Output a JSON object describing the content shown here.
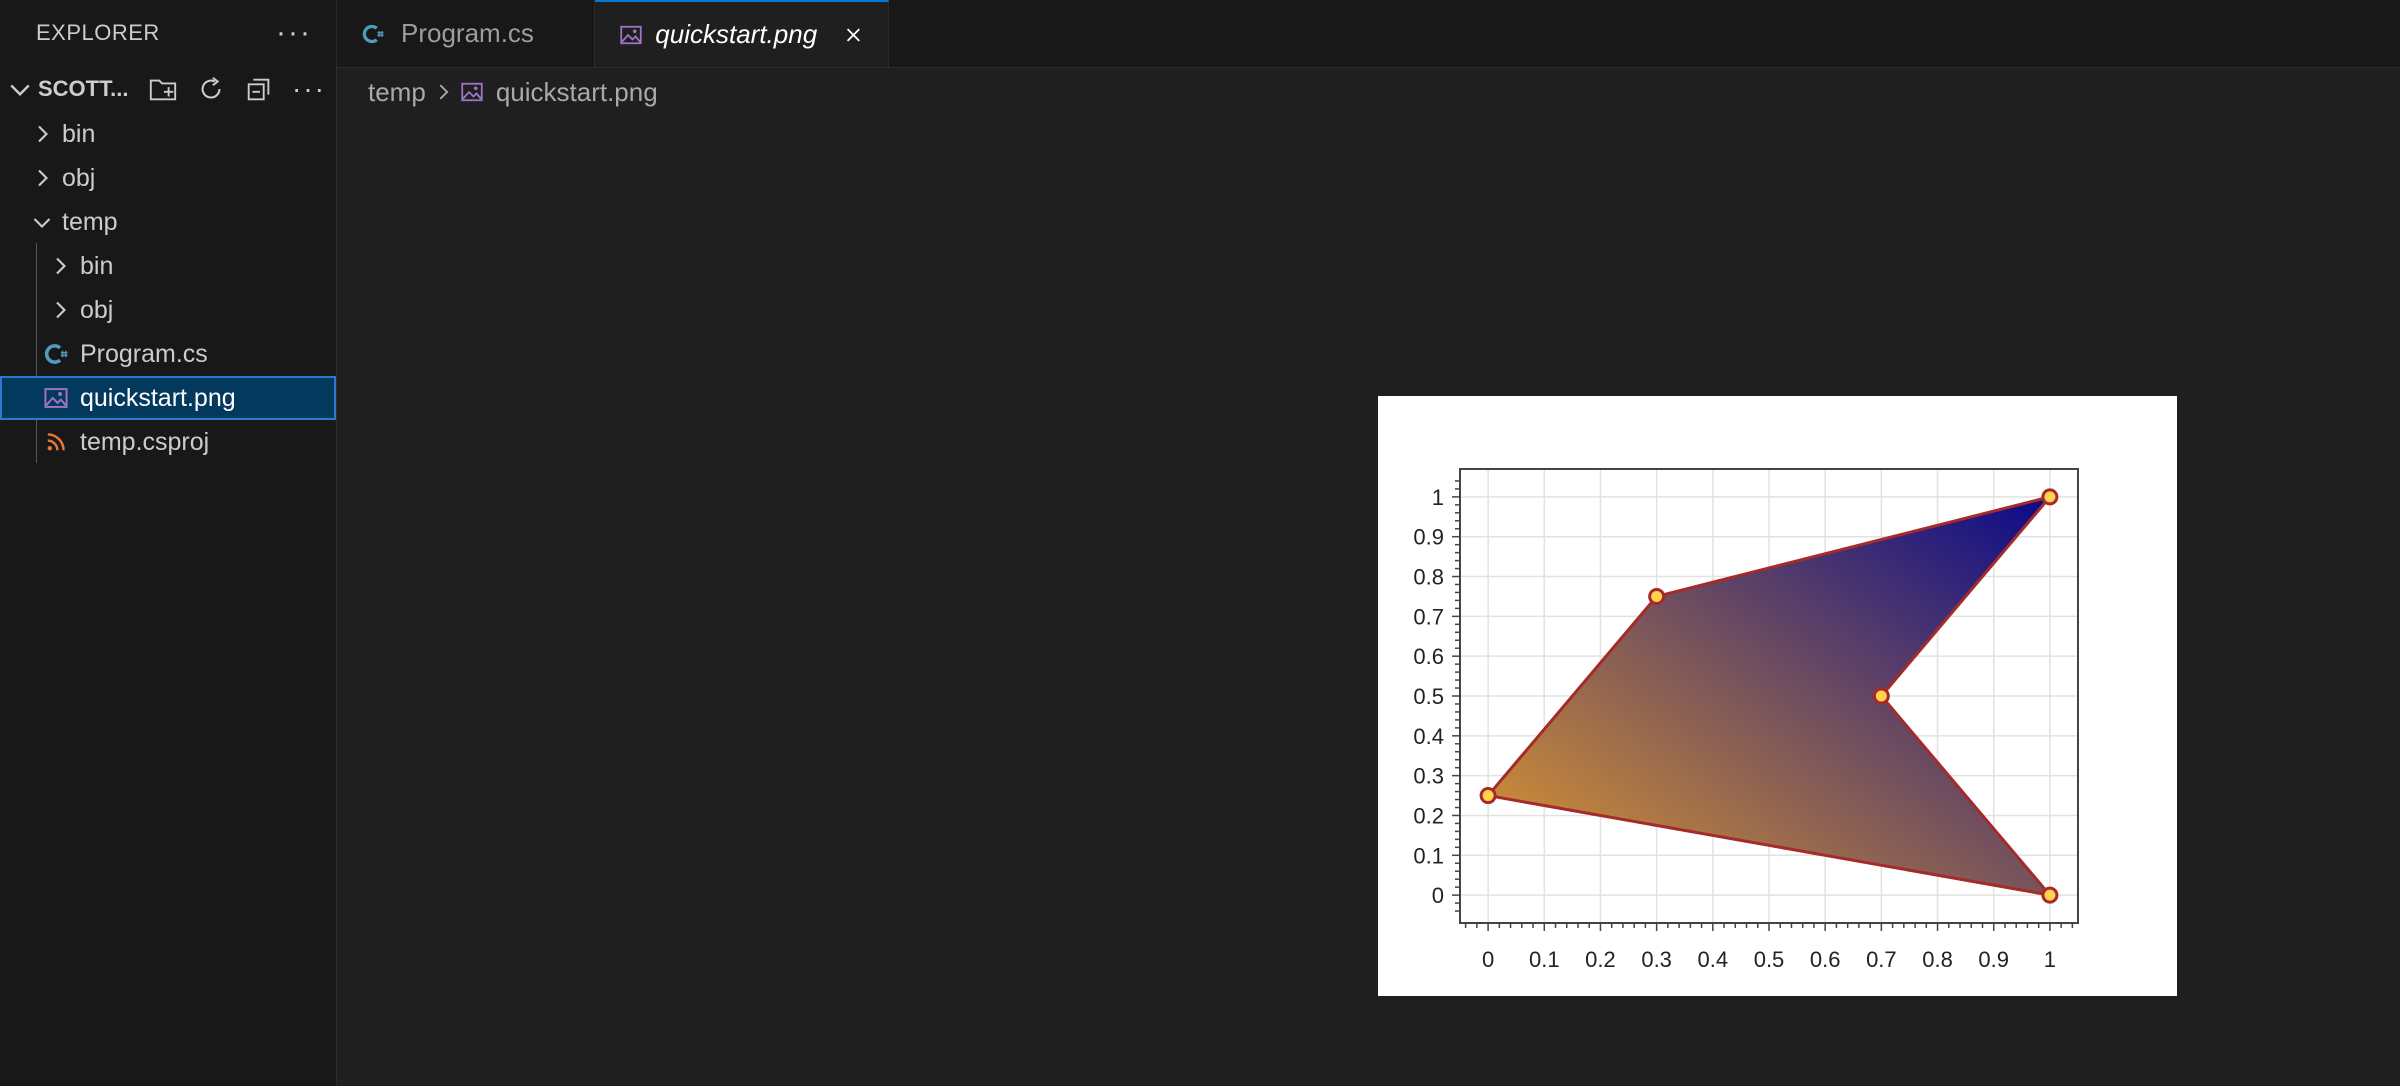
{
  "sidebar": {
    "title": "EXPLORER",
    "more_icon": "ellipsis-icon",
    "section": {
      "title": "SCOTT...",
      "actions": [
        "new-folder-icon",
        "refresh-icon",
        "collapse-all-icon",
        "ellipsis-icon"
      ]
    },
    "tree": [
      {
        "label": "bin",
        "type": "folder",
        "expanded": false,
        "level": 0
      },
      {
        "label": "obj",
        "type": "folder",
        "expanded": false,
        "level": 0
      },
      {
        "label": "temp",
        "type": "folder",
        "expanded": true,
        "level": 0
      },
      {
        "label": "bin",
        "type": "folder",
        "expanded": false,
        "level": 1
      },
      {
        "label": "obj",
        "type": "folder",
        "expanded": false,
        "level": 1
      },
      {
        "label": "Program.cs",
        "type": "csharp",
        "level": 1
      },
      {
        "label": "quickstart.png",
        "type": "image",
        "level": 1,
        "selected": true
      },
      {
        "label": "temp.csproj",
        "type": "rss",
        "level": 1
      }
    ]
  },
  "tabs": [
    {
      "label": "Program.cs",
      "icon": "csharp-icon",
      "active": false
    },
    {
      "label": "quickstart.png",
      "icon": "image-icon",
      "active": true
    }
  ],
  "breadcrumb": {
    "folder": "temp",
    "file": "quickstart.png"
  },
  "colors": {
    "accent": "#0078d4",
    "selected_bg": "#04395e",
    "csharp": "#519aba",
    "image": "#a074c4",
    "rss": "#e37933"
  },
  "chart_data": {
    "type": "area",
    "x_ticks": [
      "0",
      "0.1",
      "0.2",
      "0.3",
      "0.4",
      "0.5",
      "0.6",
      "0.7",
      "0.8",
      "0.9",
      "1"
    ],
    "y_ticks": [
      "0",
      "0.1",
      "0.2",
      "0.3",
      "0.4",
      "0.5",
      "0.6",
      "0.7",
      "0.8",
      "0.9",
      "1"
    ],
    "xlim": [
      -0.05,
      1.05
    ],
    "ylim": [
      -0.07,
      1.07
    ],
    "polygon": [
      {
        "x": 0,
        "y": 0.25
      },
      {
        "x": 0.3,
        "y": 0.75
      },
      {
        "x": 1,
        "y": 1
      },
      {
        "x": 0.7,
        "y": 0.5
      },
      {
        "x": 1,
        "y": 0
      }
    ],
    "fill_gradient": [
      "#e39b2e",
      "#0a0a8a"
    ],
    "line_color": "#a52a2a",
    "marker_color": "#ffd34d",
    "grid": true
  }
}
